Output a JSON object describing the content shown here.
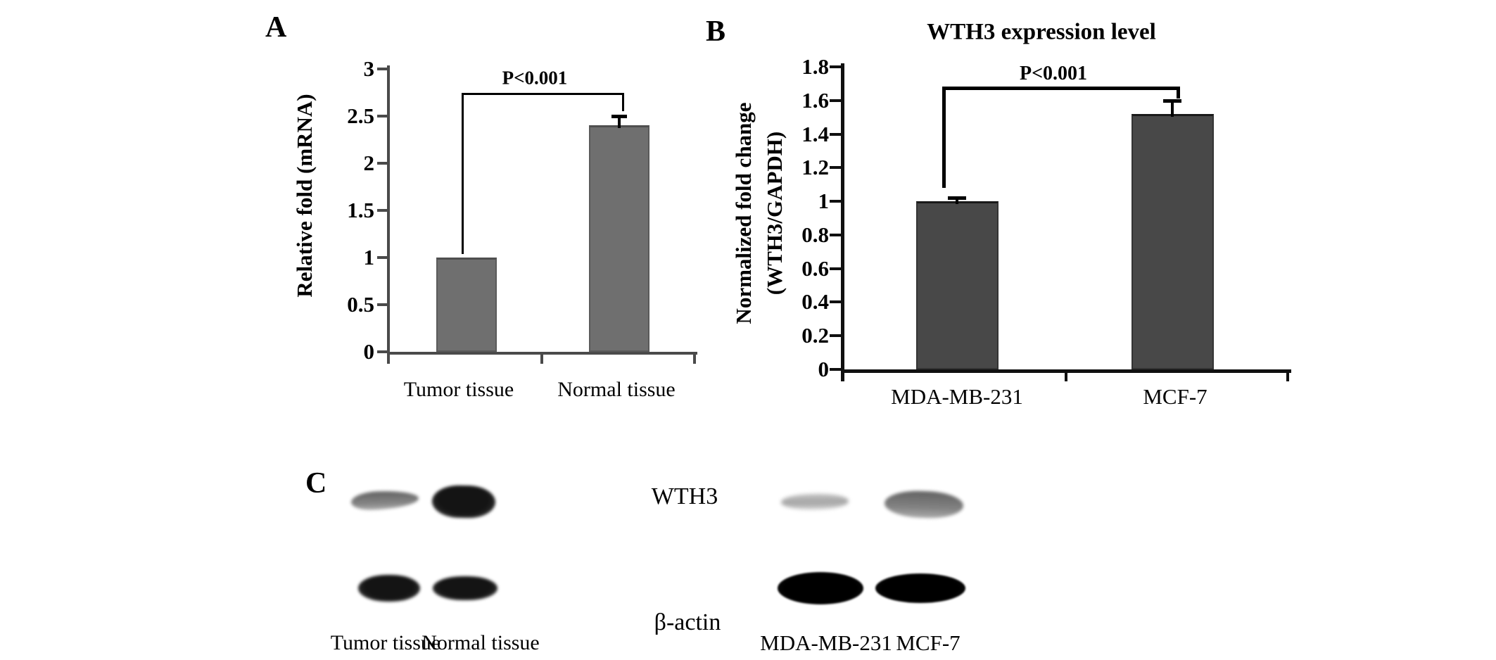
{
  "figure": {
    "background": "#ffffff",
    "panels": [
      {
        "label": "A"
      },
      {
        "label": "B"
      },
      {
        "label": "C"
      }
    ]
  },
  "chart_data": [
    {
      "type": "bar",
      "panel": "A",
      "title": "",
      "categories": [
        "Tumor tissue",
        "Normal tissue"
      ],
      "values": [
        1.0,
        2.4
      ],
      "errors": [
        0,
        0.1
      ],
      "xlabel": "",
      "ylabel": "Relative fold (mRNA)",
      "ylim": [
        0,
        3
      ],
      "yticks": [
        "0",
        "0.5",
        "1",
        "1.5",
        "2",
        "2.5",
        "3"
      ],
      "bar_color": "#6f6f6f",
      "grid": false,
      "legend": null,
      "significance": {
        "label": "P<0.001",
        "between": [
          "Tumor tissue",
          "Normal tissue"
        ]
      }
    },
    {
      "type": "bar",
      "panel": "B",
      "title": "WTH3 expression level",
      "categories": [
        "MDA-MB-231",
        "MCF-7"
      ],
      "values": [
        1.0,
        1.52
      ],
      "errors": [
        0.02,
        0.08
      ],
      "xlabel": "",
      "ylabel_lines": [
        "Normalized fold change",
        "(WTH3/GAPDH)"
      ],
      "ylim": [
        0,
        1.8
      ],
      "yticks": [
        "0",
        "0.2",
        "0.4",
        "0.6",
        "0.8",
        "1",
        "1.2",
        "1.4",
        "1.6",
        "1.8"
      ],
      "bar_color": "#484848",
      "grid": false,
      "legend": null,
      "significance": {
        "label": "P<0.001",
        "between": [
          "MDA-MB-231",
          "MCF-7"
        ]
      }
    },
    {
      "type": "western_blot",
      "panel": "C",
      "rows": [
        "WTH3",
        "β-actin"
      ],
      "groups": [
        {
          "lanes": [
            "Tumor tissue",
            "Normal tissue"
          ],
          "bands": {
            "WTH3": [
              "medium",
              "strong"
            ],
            "β-actin": [
              "strong",
              "strong"
            ]
          }
        },
        {
          "lanes": [
            "MDA-MB-231",
            "MCF-7"
          ],
          "bands": {
            "WTH3": [
              "weak",
              "medium"
            ],
            "β-actin": [
              "very-strong",
              "very-strong"
            ]
          }
        }
      ]
    }
  ]
}
